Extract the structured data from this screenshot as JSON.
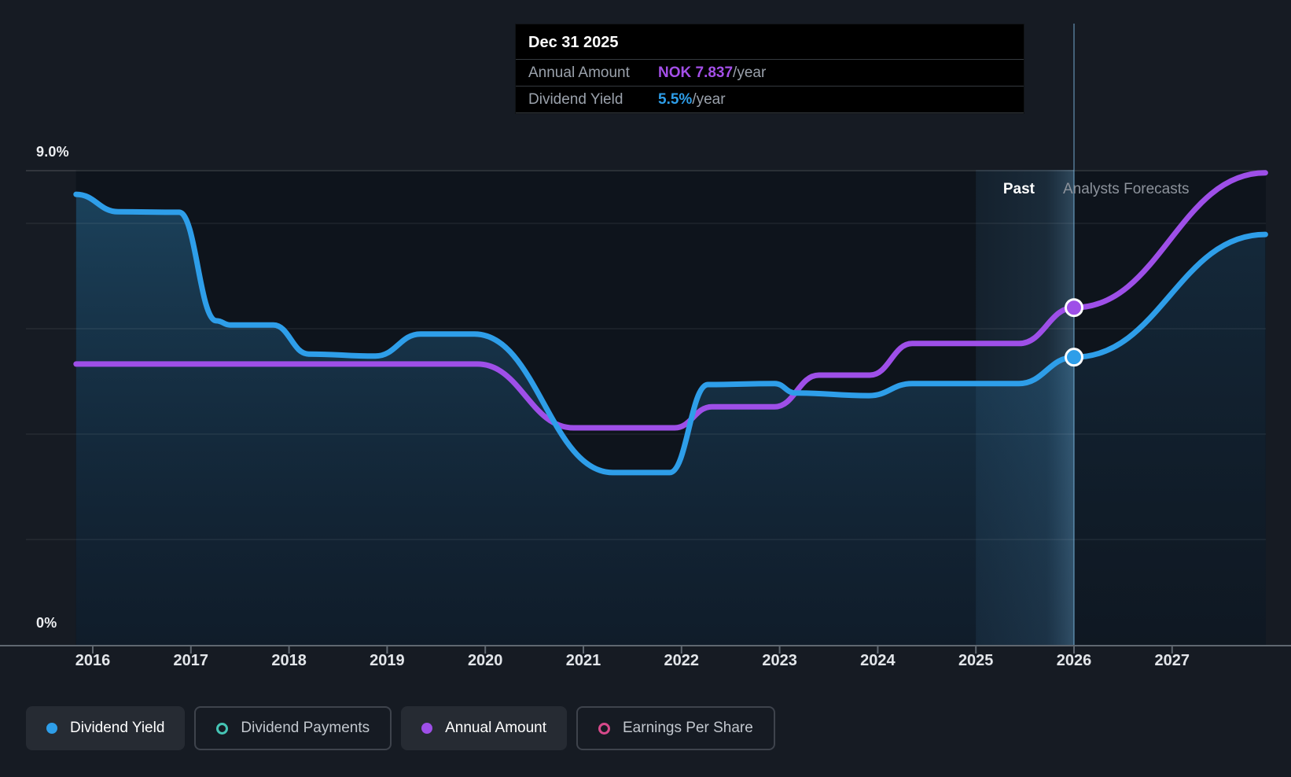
{
  "tooltip": {
    "date": "Dec 31 2025",
    "rows": [
      {
        "label": "Annual Amount",
        "value": "NOK 7.837",
        "value_color": "#A44FE8",
        "suffix": "/year"
      },
      {
        "label": "Dividend Yield",
        "value": "5.5%",
        "value_color": "#2E9EE9",
        "suffix": "/year"
      }
    ]
  },
  "annotations": {
    "past_label": "Past",
    "forecast_label": "Analysts Forecasts"
  },
  "y_axis": {
    "top_label": "9.0%",
    "bottom_label": "0%"
  },
  "x_axis": {
    "years": [
      "2016",
      "2017",
      "2018",
      "2019",
      "2020",
      "2021",
      "2022",
      "2023",
      "2024",
      "2025",
      "2026",
      "2027"
    ]
  },
  "legend": [
    {
      "label": "Dividend Yield",
      "color": "#2E9EE9",
      "style": "filled",
      "active": true
    },
    {
      "label": "Dividend Payments",
      "color": "#45C4B4",
      "style": "outline",
      "active": false
    },
    {
      "label": "Annual Amount",
      "color": "#9E4FE8",
      "style": "filled",
      "active": true
    },
    {
      "label": "Earnings Per Share",
      "color": "#D6498A",
      "style": "outline",
      "active": false
    }
  ],
  "chart_data": {
    "type": "line",
    "title": "Dividend yield history and analyst forecasts",
    "x_range": [
      2015.83,
      2027.95
    ],
    "ylim": [
      0,
      9
    ],
    "y_gridlines_percent": [
      9,
      8,
      6,
      4,
      2,
      0
    ],
    "grid": true,
    "divider_year": 2026,
    "highlight_band_years": [
      2025,
      2026
    ],
    "series": [
      {
        "name": "Dividend Yield",
        "color": "#2E9EE9",
        "unit": "percent",
        "area_fill": true,
        "points": [
          [
            2015.83,
            8.55
          ],
          [
            2016.26,
            8.22
          ],
          [
            2016.88,
            8.21
          ],
          [
            2017.26,
            6.15
          ],
          [
            2017.4,
            6.07
          ],
          [
            2017.84,
            6.07
          ],
          [
            2018.2,
            5.52
          ],
          [
            2018.88,
            5.48
          ],
          [
            2019.34,
            5.9
          ],
          [
            2019.89,
            5.9
          ],
          [
            2021.3,
            3.27
          ],
          [
            2021.88,
            3.27
          ],
          [
            2022.27,
            4.94
          ],
          [
            2022.95,
            4.96
          ],
          [
            2023.16,
            4.78
          ],
          [
            2023.91,
            4.73
          ],
          [
            2024.35,
            4.96
          ],
          [
            2025.44,
            4.96
          ],
          [
            2026.0,
            5.46
          ],
          [
            2027.95,
            7.79
          ]
        ]
      },
      {
        "name": "Annual Amount",
        "color": "#9E4FE8",
        "unit": "percent-equivalent-position",
        "area_fill": false,
        "points": [
          [
            2015.83,
            5.33
          ],
          [
            2019.92,
            5.33
          ],
          [
            2020.9,
            4.12
          ],
          [
            2021.93,
            4.12
          ],
          [
            2022.31,
            4.52
          ],
          [
            2022.95,
            4.52
          ],
          [
            2023.4,
            5.12
          ],
          [
            2023.92,
            5.12
          ],
          [
            2024.35,
            5.72
          ],
          [
            2025.44,
            5.72
          ],
          [
            2026.0,
            6.4
          ],
          [
            2027.95,
            8.96
          ]
        ]
      }
    ],
    "markers": [
      {
        "series": "Annual Amount",
        "x": 2026,
        "y": 6.4,
        "color": "#9E4FE8"
      },
      {
        "series": "Dividend Yield",
        "x": 2026,
        "y": 5.46,
        "color": "#2E9EE9"
      }
    ],
    "legend_position": "bottom"
  }
}
